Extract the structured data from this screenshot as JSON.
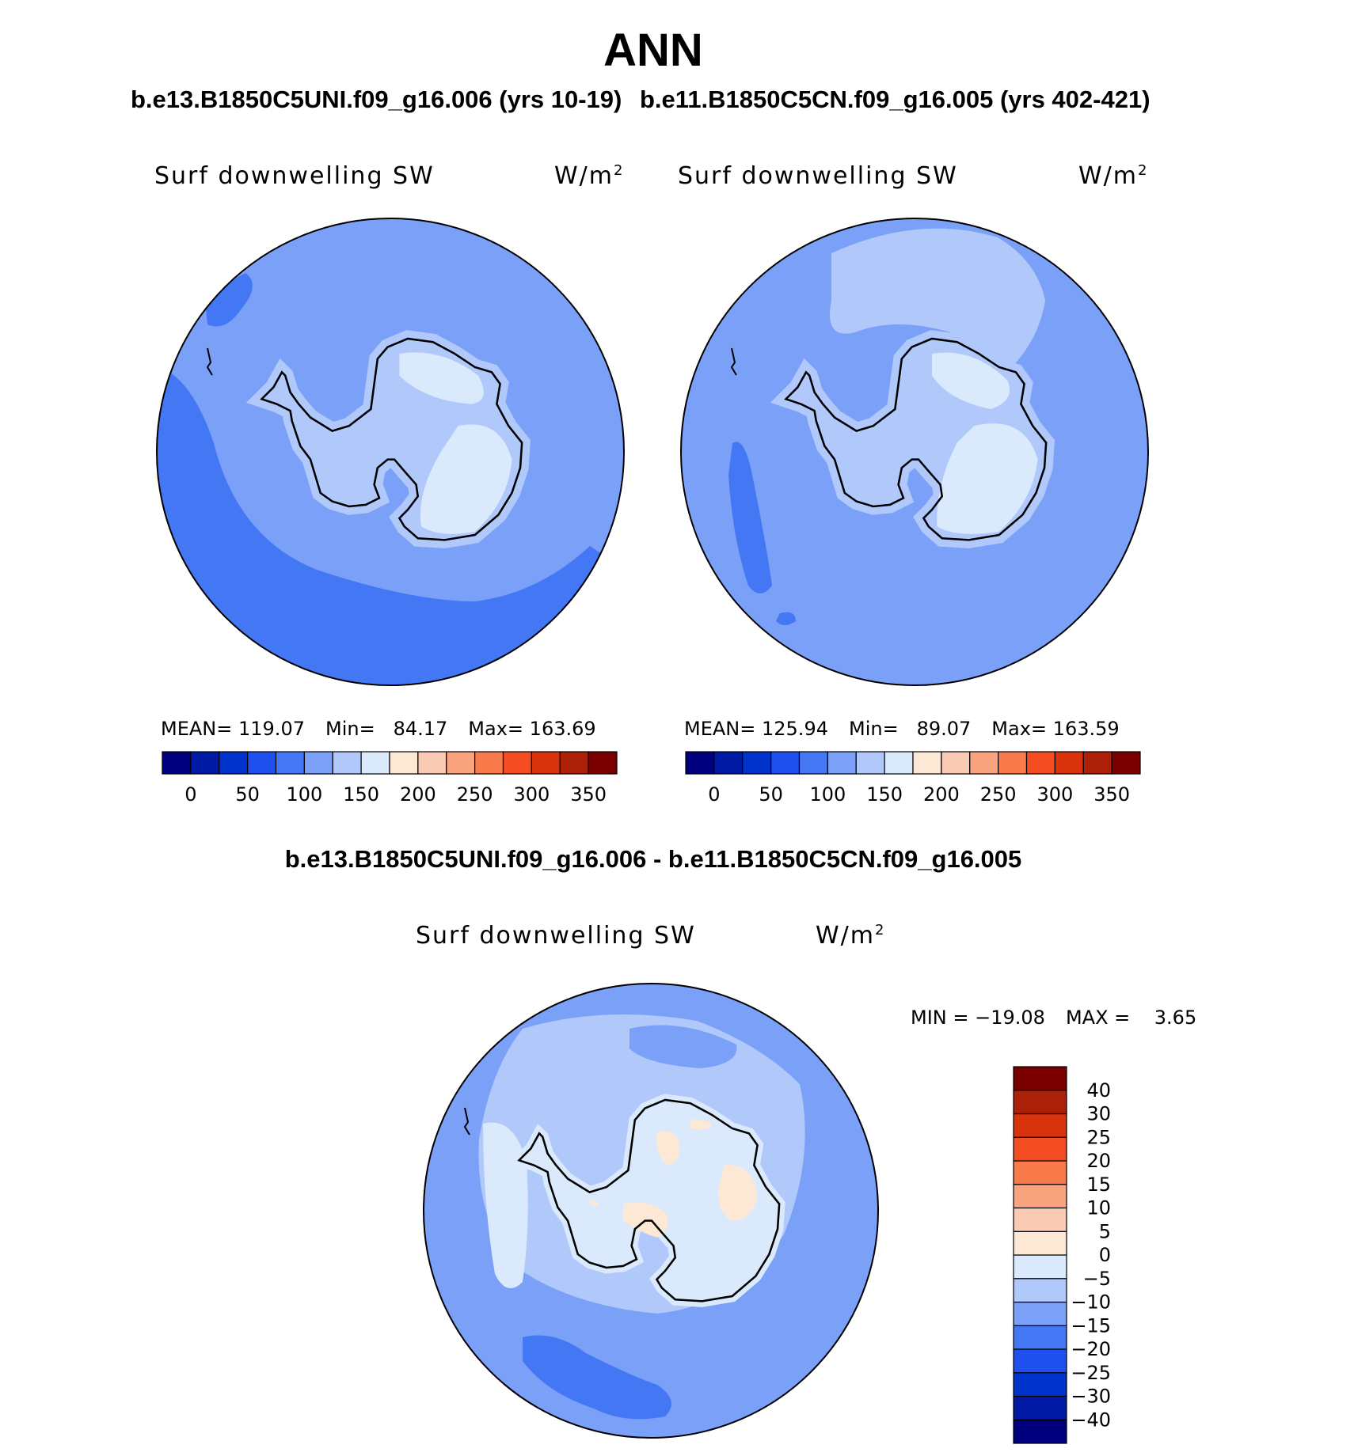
{
  "figure": {
    "title": "ANN",
    "subtitle_left": "b.e13.B1850C5UNI.f09_g16.006 (yrs 10-19)",
    "subtitle_right": "b.e11.B1850C5CN.f09_g16.005 (yrs 402-421)",
    "subtitle_diff": "b.e13.B1850C5UNI.f09_g16.006 - b.e11.B1850C5CN.f09_g16.005"
  },
  "panels": [
    {
      "variable": "Surf downwelling SW",
      "units": "W/m",
      "units_exponent": "2",
      "stats": {
        "mean_label": "MEAN=",
        "mean": "119.07",
        "min_label": "Min=",
        "min": "84.17",
        "max_label": "Max=",
        "max": "163.69"
      }
    },
    {
      "variable": "Surf downwelling SW",
      "units": "W/m",
      "units_exponent": "2",
      "stats": {
        "mean_label": "MEAN=",
        "mean": "125.94",
        "min_label": "Min=",
        "min": "89.07",
        "max_label": "Max=",
        "max": "163.59"
      }
    },
    {
      "variable": "Surf downwelling SW",
      "units": "W/m",
      "units_exponent": "2",
      "stats": {
        "min_label": "MIN =",
        "min": "−19.08",
        "max_label": "MAX =",
        "max": "3.65"
      }
    }
  ],
  "colorbar_abs": {
    "colors": [
      "#00007f",
      "#001aa6",
      "#0033cc",
      "#1f4fef",
      "#4477f4",
      "#7aa0f7",
      "#b0c8fa",
      "#daeafc",
      "#fde8d6",
      "#fbcab4",
      "#faa37f",
      "#f97b4c",
      "#f44d22",
      "#d9330c",
      "#ad2008",
      "#7a0000"
    ],
    "tick_labels": [
      "0",
      "50",
      "100",
      "150",
      "200",
      "250",
      "300",
      "350"
    ]
  },
  "colorbar_diff": {
    "colors": [
      "#00007f",
      "#001aa6",
      "#0033cc",
      "#1f4fef",
      "#4477f4",
      "#7aa0f7",
      "#b0c8fa",
      "#daeafc",
      "#fde8d6",
      "#fbcab4",
      "#faa37f",
      "#f97b4c",
      "#f44d22",
      "#d9330c",
      "#ad2008",
      "#7a0000"
    ],
    "tick_labels": [
      "−40",
      "−30",
      "−25",
      "−20",
      "−15",
      "−10",
      "−5",
      "0",
      "5",
      "10",
      "15",
      "20",
      "25",
      "30",
      "40"
    ]
  },
  "map_colors": {
    "c100": "#7aa0f7",
    "c125": "#b0c8fa",
    "c75": "#4477f4",
    "c150": "#daeafc",
    "d_m10": "#7aa0f7",
    "d_m5": "#b0c8fa",
    "d_m15": "#4477f4",
    "d_0": "#daeafc",
    "d_5": "#fde8d6"
  }
}
